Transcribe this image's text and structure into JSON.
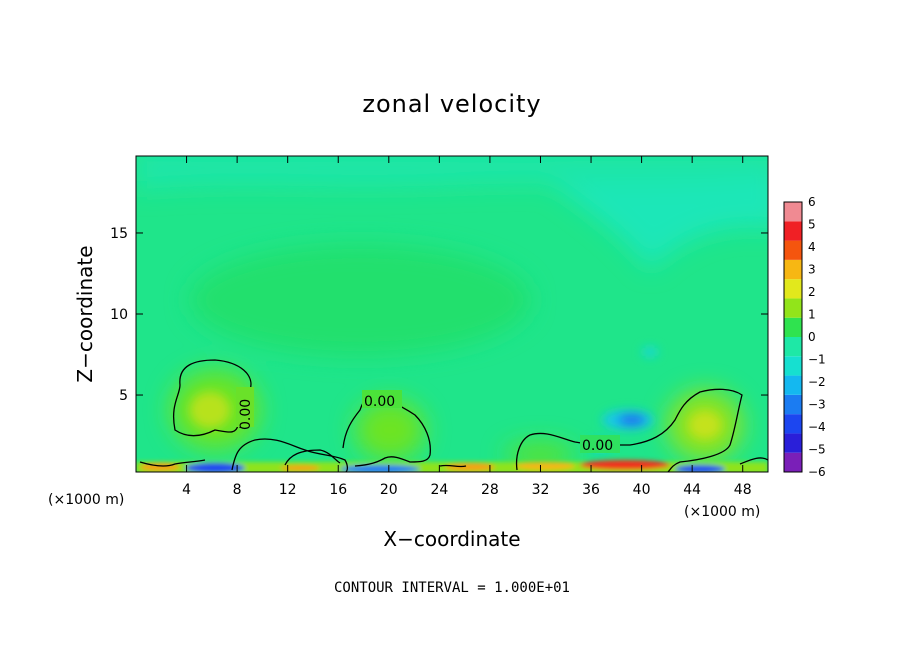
{
  "chart_data": {
    "type": "heatmap",
    "title": "zonal velocity",
    "xlabel": "X−coordinate",
    "ylabel": "Z−coordinate",
    "x_unit_left": "(×1000 m)",
    "x_unit_right": "(×1000 m)",
    "xlim": [
      0,
      50
    ],
    "ylim": [
      0.25,
      19.75
    ],
    "x_ticks": [
      4,
      8,
      12,
      16,
      20,
      24,
      28,
      32,
      36,
      40,
      44,
      48
    ],
    "x_tick_labels": [
      "4",
      "8",
      "12",
      "16",
      "20",
      "24",
      "28",
      "32",
      "36",
      "40",
      "44",
      "48"
    ],
    "y_ticks": [
      5,
      10,
      15
    ],
    "y_tick_labels": [
      "5",
      "10",
      "15"
    ],
    "footer": "CONTOUR INTERVAL = 1.000E+01",
    "contour_label_text": "0.00",
    "colorbar": {
      "levels": [
        -6,
        -5,
        -4,
        -3,
        -2,
        -1,
        0,
        1,
        2,
        3,
        4,
        5,
        6
      ],
      "labels": [
        "−6",
        "−5",
        "−4",
        "−3",
        "−2",
        "−1",
        "0",
        "1",
        "2",
        "3",
        "4",
        "5",
        "6"
      ],
      "colors": [
        "#7a1fb8",
        "#2a1fd9",
        "#1c46f0",
        "#1b7cf2",
        "#14b8f0",
        "#16e0d0",
        "#1ee8a6",
        "#2fe34f",
        "#92e41a",
        "#e2e81c",
        "#f7b713",
        "#f5550e",
        "#f02025",
        "#f08a92"
      ]
    },
    "colors": {
      "background": "#1fe58a",
      "upper": "#1ee8b0",
      "axis": "#000000"
    }
  }
}
